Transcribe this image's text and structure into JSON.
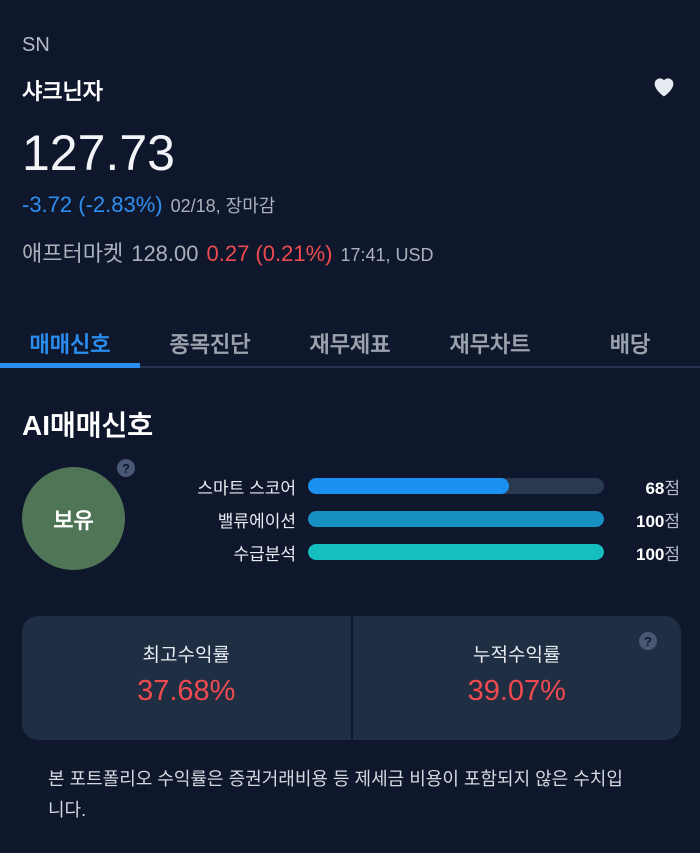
{
  "header": {
    "ticker": "SN",
    "name": "샤크닌자",
    "price": "127.73",
    "change": "-3.72 (-2.83%)",
    "date_status": "02/18, 장마감",
    "after_label": "애프터마켓",
    "after_price": "128.00",
    "after_change": "0.27 (0.21%)",
    "after_time": "17:41, USD"
  },
  "tabs": [
    {
      "label": "매매신호"
    },
    {
      "label": "종목진단"
    },
    {
      "label": "재무제표"
    },
    {
      "label": "재무차트"
    },
    {
      "label": "배당"
    }
  ],
  "signal": {
    "title": "AI매매신호",
    "badge": "보유",
    "help": "?",
    "scores": [
      {
        "label": "스마트 스코어",
        "value": "68",
        "unit": "점",
        "percent": 68,
        "color": "#1a90f0"
      },
      {
        "label": "밸류에이션",
        "value": "100",
        "unit": "점",
        "percent": 100,
        "color": "#1590c0"
      },
      {
        "label": "수급분석",
        "value": "100",
        "unit": "점",
        "percent": 100,
        "color": "#14bfbf"
      }
    ]
  },
  "returns": {
    "max_label": "최고수익률",
    "max_value": "37.68%",
    "cum_label": "누적수익률",
    "cum_value": "39.07%",
    "help": "?"
  },
  "note": "본 포트폴리오 수익률은 증권거래비용 등 제세금 비용이 포함되지 않은 수치입니다."
}
